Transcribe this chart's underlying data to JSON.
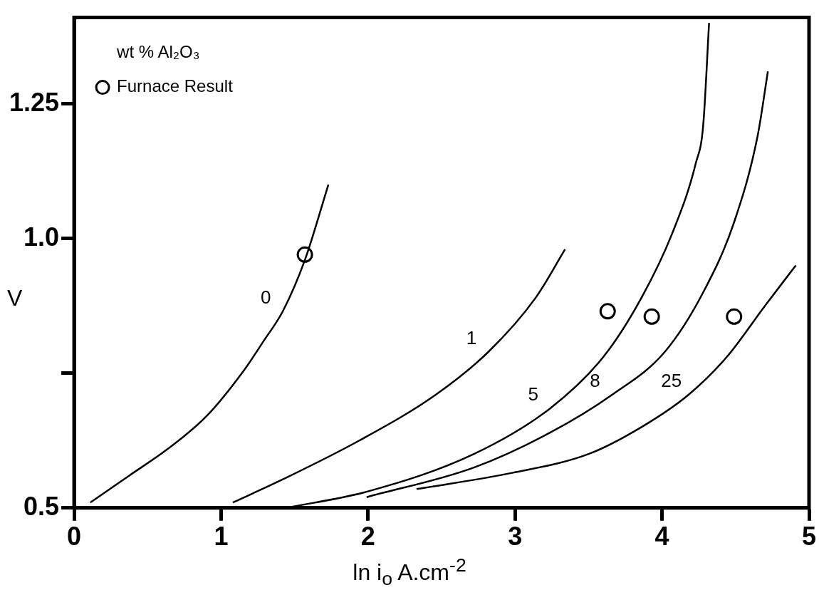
{
  "chart_data": {
    "type": "line",
    "xlabel": "ln i$_{o}$ A.cm$^{-2}$",
    "ylabel": "V",
    "legend_title": "wt % Al₂O₃",
    "legend": "top left",
    "xlim": [
      0,
      5
    ],
    "ylim": [
      0.5,
      1.41
    ],
    "xticks": [
      0,
      1,
      2,
      3,
      4,
      5
    ],
    "yticks": [
      0.5,
      {
        "value": 0.75,
        "label": null
      },
      {
        "value": 1.0,
        "label": "1.0"
      },
      1.25
    ],
    "grid": false,
    "line_style": "solid",
    "marker": "none",
    "series": [
      {
        "color": "#000000",
        "x": [
          0.11,
          0.375,
          0.64,
          0.9,
          1.16,
          1.29,
          1.42,
          1.57,
          1.73
        ],
        "values": [
          0.51,
          0.56,
          0.61,
          0.67,
          0.757,
          0.81,
          0.865,
          0.96,
          1.1
        ]
      },
      {
        "color": "#000000",
        "x": [
          1.08,
          1.42,
          1.94,
          2.46,
          2.82,
          3.14,
          3.34
        ],
        "values": [
          0.51,
          0.553,
          0.625,
          0.71,
          0.79,
          0.89,
          0.98
        ]
      },
      {
        "color": "#000000",
        "x": [
          1.44,
          1.99,
          2.72,
          3.24,
          3.6,
          3.86,
          4.07,
          4.23,
          4.28,
          4.32
        ],
        "values": [
          0.5,
          0.53,
          0.6,
          0.685,
          0.78,
          0.89,
          1.01,
          1.14,
          1.21,
          1.4
        ]
      },
      {
        "color": "#000000",
        "x": [
          1.99,
          2.72,
          3.24,
          3.66,
          4.02,
          4.28,
          4.49,
          4.65,
          4.72
        ],
        "values": [
          0.52,
          0.575,
          0.64,
          0.71,
          0.79,
          0.9,
          1.03,
          1.19,
          1.31
        ]
      },
      {
        "color": "#000000",
        "x": [
          2.33,
          2.98,
          3.5,
          3.86,
          4.18,
          4.44,
          4.7,
          4.91
        ],
        "values": [
          0.535,
          0.565,
          0.6,
          0.65,
          0.71,
          0.78,
          0.875,
          0.95
        ]
      },
      {
        "type": "scatter",
        "name": "Furnace Result",
        "marker": "circle",
        "color": "#000000",
        "x": [
          1.57,
          3.63,
          3.93,
          4.49
        ],
        "values": [
          0.97,
          0.865,
          0.855,
          0.855
        ]
      }
    ],
    "annotations": [
      {
        "text": "0",
        "x": 1.42,
        "y": 0.865
      },
      {
        "text": "1",
        "x": 2.82,
        "y": 0.79
      },
      {
        "text": "5",
        "x": 3.24,
        "y": 0.685
      },
      {
        "text": "8",
        "x": 3.66,
        "y": 0.71
      },
      {
        "text": "25",
        "x": 4.18,
        "y": 0.71
      }
    ]
  }
}
